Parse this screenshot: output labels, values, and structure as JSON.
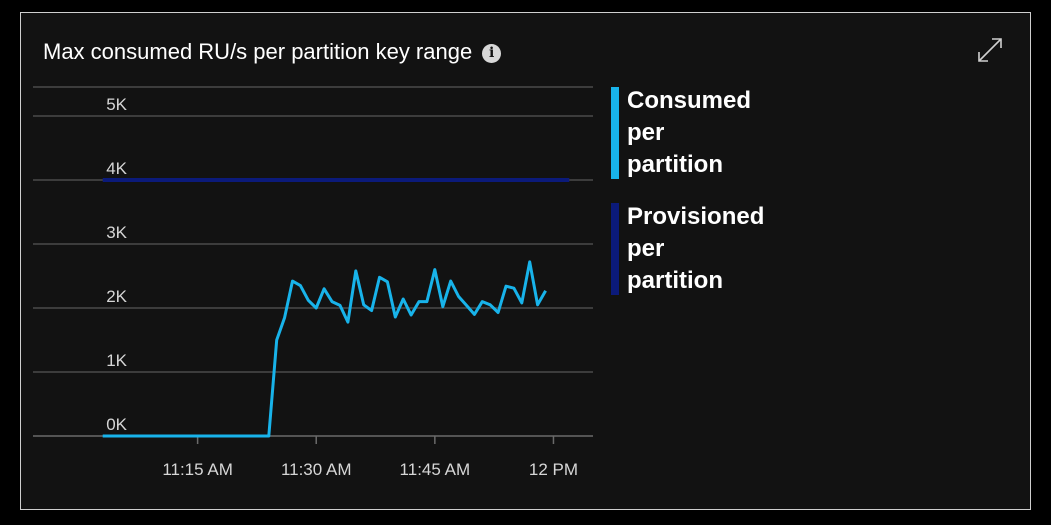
{
  "tile": {
    "title": "Max consumed RU/s per partition key range",
    "info_icon": "info-icon",
    "expand_icon": "expand-icon"
  },
  "colors": {
    "consumed": "#18b3ea",
    "provisioned": "#0b1a7a",
    "grid": "#4a4a4a",
    "text": "#ffffff",
    "tick_text": "#d6d6d6"
  },
  "chart_data": {
    "type": "line",
    "title": "Max consumed RU/s per partition key range",
    "xlabel": "",
    "ylabel": "",
    "x_unit": "minutes past 11:00 AM",
    "xlim": [
      0,
      65
    ],
    "ylim": [
      0,
      5500
    ],
    "y_ticks": [
      0,
      1000,
      2000,
      3000,
      4000,
      5000
    ],
    "y_tick_labels": [
      "0K",
      "1K",
      "2K",
      "3K",
      "4K",
      "5K"
    ],
    "x_ticks": [
      15,
      30,
      45,
      60
    ],
    "x_tick_labels": [
      "11:15 AM",
      "11:30 AM",
      "11:45 AM",
      "12 PM"
    ],
    "grid": true,
    "legend_position": "right",
    "series": [
      {
        "name": "Consumed per partition",
        "color": "#18b3ea",
        "x": [
          3,
          5,
          7,
          9,
          11,
          13,
          15,
          17,
          19,
          21,
          23,
          24,
          25,
          26,
          27,
          28,
          29,
          30,
          31,
          32,
          33,
          34,
          35,
          36,
          37,
          38,
          39,
          40,
          41,
          42,
          43,
          44,
          45,
          46,
          47,
          48,
          49,
          50,
          51,
          52,
          53,
          54,
          55,
          56,
          57,
          58,
          59,
          60,
          61,
          62
        ],
        "y": [
          0,
          0,
          0,
          0,
          0,
          0,
          0,
          0,
          0,
          0,
          0,
          0,
          1500,
          1850,
          2420,
          2350,
          2120,
          2000,
          2300,
          2100,
          2040,
          1780,
          2580,
          2050,
          1960,
          2480,
          2410,
          1860,
          2140,
          1890,
          2100,
          2100,
          2600,
          2020,
          2420,
          2180,
          2040,
          1900,
          2100,
          2050,
          1930,
          2340,
          2310,
          2080,
          2720,
          2050,
          2270,
          null,
          null,
          null
        ]
      },
      {
        "name": "Provisioned per partition",
        "color": "#0b1a7a",
        "x": [
          3,
          62
        ],
        "y": [
          4000,
          4000
        ]
      }
    ]
  }
}
